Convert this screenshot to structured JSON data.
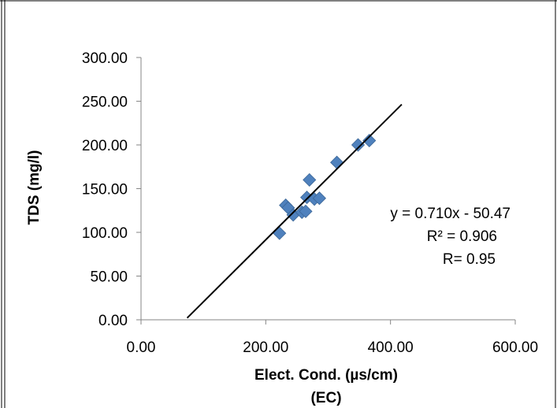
{
  "chart_data": {
    "type": "scatter",
    "title": "",
    "xlabel": "Elect. Cond. (µs/cm)",
    "xlabel_sub": "(EC)",
    "ylabel": "TDS (mg/l)",
    "xlim": [
      0,
      600
    ],
    "ylim": [
      0,
      300
    ],
    "x_ticks": [
      "0.00",
      "200.00",
      "400.00",
      "600.00"
    ],
    "y_ticks": [
      "0.00",
      "50.00",
      "100.00",
      "150.00",
      "200.00",
      "250.00",
      "300.00"
    ],
    "grid": false,
    "series": [
      {
        "marker": "diamond",
        "color": "#4f81bd",
        "points": [
          {
            "x": 222,
            "y": 99
          },
          {
            "x": 232,
            "y": 131
          },
          {
            "x": 236,
            "y": 128
          },
          {
            "x": 244,
            "y": 120
          },
          {
            "x": 258,
            "y": 123
          },
          {
            "x": 264,
            "y": 124
          },
          {
            "x": 266,
            "y": 140
          },
          {
            "x": 270,
            "y": 160
          },
          {
            "x": 278,
            "y": 138
          },
          {
            "x": 286,
            "y": 139
          },
          {
            "x": 314,
            "y": 180
          },
          {
            "x": 348,
            "y": 200
          },
          {
            "x": 366,
            "y": 205
          }
        ]
      }
    ],
    "trendline": {
      "slope": 0.71,
      "intercept": -50.47,
      "x_range": [
        74,
        418
      ],
      "color": "#000000",
      "equation": "y = 0.710x - 50.47",
      "r_squared": "R² = 0.906",
      "r": "R= 0.95"
    }
  }
}
